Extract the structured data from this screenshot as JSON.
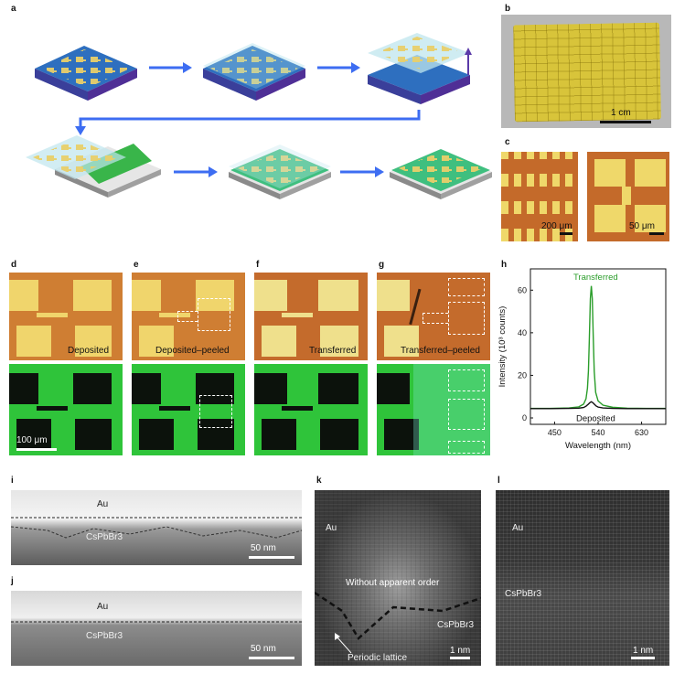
{
  "panel_labels": {
    "a": "a",
    "b": "b",
    "c": "c",
    "d": "d",
    "e": "e",
    "f": "f",
    "g": "g",
    "h": "h",
    "i": "i",
    "j": "j",
    "k": "k",
    "l": "l"
  },
  "panel_b": {
    "scale": "1 cm"
  },
  "panel_c": {
    "scale_left": "200 μm",
    "scale_right": "50 μm"
  },
  "optical_panels": {
    "d": "Deposited",
    "e": "Deposited–peeled",
    "f": "Transferred",
    "g": "Transferred–peeled",
    "scale_bottom_d": "100 μm"
  },
  "chart_data": {
    "type": "line",
    "xlabel": "Wavelength (nm)",
    "ylabel": "Intensity (10³ counts)",
    "xlim": [
      400,
      680
    ],
    "ylim": [
      -3,
      70
    ],
    "xticks": [
      450,
      540,
      630
    ],
    "yticks": [
      0,
      20,
      40,
      60
    ],
    "annotations": [
      "Transferred",
      "Deposited"
    ],
    "series": [
      {
        "name": "Transferred",
        "color": "#2a9d2a",
        "x": [
          400,
          440,
          480,
          500,
          510,
          515,
          518,
          520,
          522,
          524,
          526,
          528,
          530,
          532,
          535,
          540,
          550,
          570,
          600,
          640,
          680
        ],
        "y": [
          4.5,
          4.5,
          4.7,
          5.2,
          6.5,
          9,
          14,
          22,
          38,
          56,
          62,
          56,
          38,
          22,
          12,
          8,
          6,
          5,
          4.6,
          4.5,
          4.5
        ]
      },
      {
        "name": "Deposited",
        "color": "#111111",
        "x": [
          400,
          440,
          480,
          500,
          510,
          515,
          520,
          523,
          526,
          529,
          532,
          536,
          540,
          550,
          570,
          600,
          640,
          680
        ],
        "y": [
          4.4,
          4.4,
          4.5,
          4.6,
          4.9,
          5.5,
          6.5,
          7.2,
          7.6,
          7.2,
          6.5,
          5.6,
          5.1,
          4.7,
          4.5,
          4.4,
          4.4,
          4.4
        ]
      }
    ]
  },
  "tem_i": {
    "top": "Au",
    "bottom": "CsPbBr3",
    "scale": "50 nm"
  },
  "tem_j": {
    "top": "Au",
    "bottom": "CsPbBr3",
    "scale": "50 nm"
  },
  "tem_k": {
    "top": "Au",
    "middle": "Without apparent order",
    "right": "CsPbBr3",
    "arrow": "Periodic lattice",
    "scale": "1 nm"
  },
  "tem_l": {
    "top": "Au",
    "bottom": "CsPbBr3",
    "scale": "1 nm"
  }
}
